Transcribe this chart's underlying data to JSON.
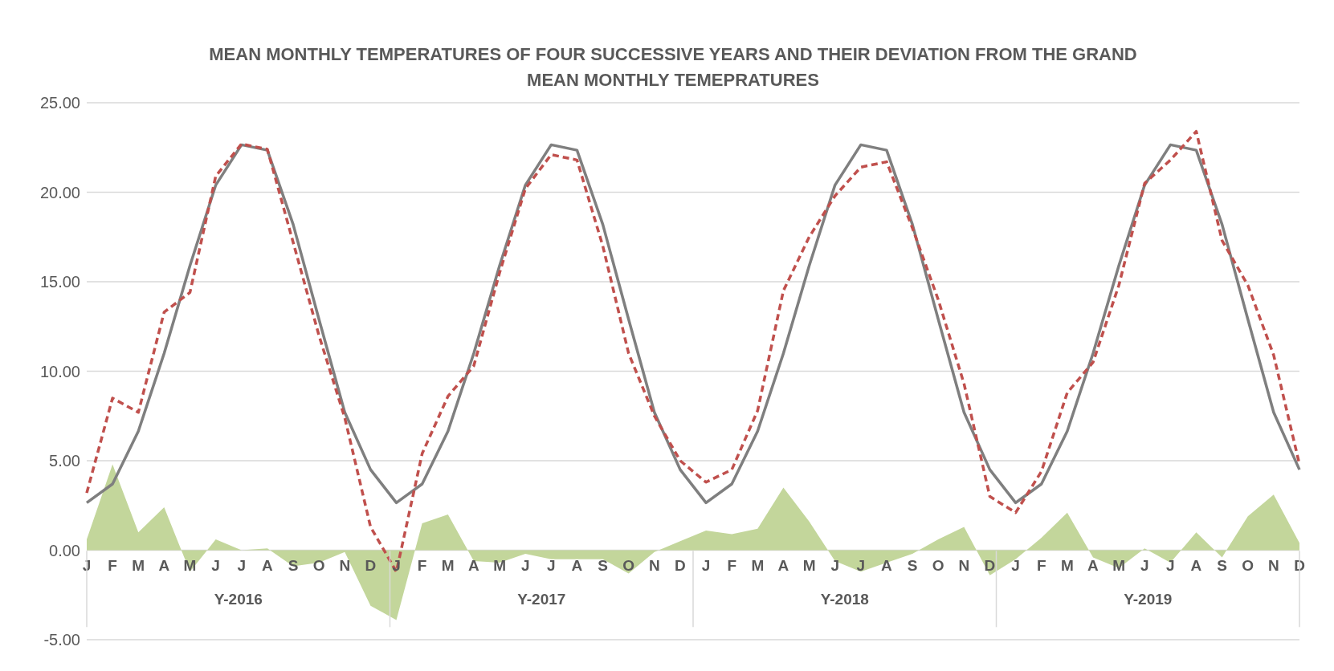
{
  "chart_data": {
    "type": "line",
    "title": "MEAN MONTHLY TEMPERATURES OF FOUR SUCCESSIVE YEARS AND THEIR DEVIATION FROM THE GRAND MEAN MONTHLY TEMEPRATURES",
    "categories": [
      "J",
      "F",
      "M",
      "A",
      "M",
      "J",
      "J",
      "A",
      "S",
      "O",
      "N",
      "D",
      "J",
      "F",
      "M",
      "A",
      "M",
      "J",
      "J",
      "A",
      "S",
      "O",
      "N",
      "D",
      "J",
      "F",
      "M",
      "A",
      "M",
      "J",
      "J",
      "A",
      "S",
      "O",
      "N",
      "D",
      "J",
      "F",
      "M",
      "A",
      "M",
      "J",
      "J",
      "A",
      "S",
      "O",
      "N",
      "D"
    ],
    "series": [
      {
        "type": "area",
        "color": "#c3d69b",
        "values": [
          0.6,
          4.8,
          1.0,
          2.4,
          -1.2,
          0.6,
          0.0,
          0.1,
          -0.9,
          -0.7,
          -0.1,
          -3.1,
          -3.9,
          1.5,
          2.0,
          -0.6,
          -0.7,
          -0.2,
          -0.5,
          -0.5,
          -0.5,
          -1.3,
          -0.1,
          0.5,
          1.1,
          0.9,
          1.2,
          3.5,
          1.6,
          -0.6,
          -1.2,
          -0.7,
          -0.2,
          0.6,
          1.3,
          -1.4,
          -0.5,
          0.7,
          2.1,
          -0.4,
          -1.0,
          0.1,
          -0.7,
          1.0,
          -0.4,
          1.9,
          3.1,
          0.4
        ]
      },
      {
        "color": "#7f7f7f",
        "line_style": "solid",
        "values": [
          2.65,
          3.7,
          6.65,
          11.0,
          15.9,
          20.4,
          22.65,
          22.35,
          18.2,
          12.9,
          7.7,
          4.5,
          2.65,
          3.7,
          6.65,
          11.0,
          15.9,
          20.4,
          22.65,
          22.35,
          18.2,
          12.9,
          7.7,
          4.5,
          2.65,
          3.7,
          6.65,
          11.0,
          15.9,
          20.4,
          22.65,
          22.35,
          18.2,
          12.9,
          7.7,
          4.5,
          2.65,
          3.7,
          6.65,
          11.0,
          15.9,
          20.4,
          22.65,
          22.35,
          18.2,
          12.9,
          7.7,
          4.5
        ]
      },
      {
        "color": "#c0504d",
        "line_style": "dashed",
        "values": [
          3.2,
          8.5,
          7.7,
          13.3,
          14.4,
          20.9,
          22.7,
          22.4,
          17.2,
          12.0,
          7.4,
          1.3,
          -1.2,
          5.4,
          8.6,
          10.3,
          15.5,
          20.2,
          22.1,
          21.8,
          17.0,
          11.0,
          7.5,
          5.0,
          3.8,
          4.5,
          7.8,
          14.5,
          17.5,
          19.8,
          21.4,
          21.7,
          18.0,
          14.0,
          9.3,
          3.0,
          2.1,
          4.4,
          8.8,
          10.5,
          14.8,
          20.5,
          21.8,
          23.4,
          17.3,
          14.8,
          10.9,
          4.8
        ]
      }
    ],
    "ylim": [
      -5,
      25
    ],
    "yticks": [
      {
        "value": -5,
        "label": "-5.00"
      },
      {
        "value": 0,
        "label": "0.00"
      },
      {
        "value": 5,
        "label": "5.00"
      },
      {
        "value": 10,
        "label": "10.00"
      },
      {
        "value": 15,
        "label": "15.00"
      },
      {
        "value": 20,
        "label": "20.00"
      },
      {
        "value": 25,
        "label": "25.00"
      }
    ],
    "grid": "y",
    "marker": "none",
    "annotations": [
      "Y-2016",
      "Y-2017",
      "Y-2018",
      "Y-2019"
    ]
  }
}
